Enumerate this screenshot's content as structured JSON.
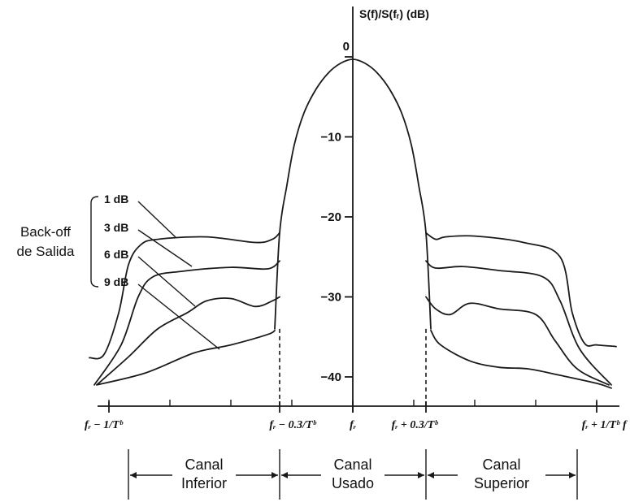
{
  "chart_data": {
    "type": "line",
    "title": "",
    "ylabel": "S(f)/S(fᵣ) (dB)",
    "xlabel": "f",
    "ylim": [
      -42,
      0
    ],
    "yticks": [
      {
        "value": 0,
        "label": "0"
      },
      {
        "value": -10,
        "label": "−10"
      },
      {
        "value": -20,
        "label": "−20"
      },
      {
        "value": -30,
        "label": "−30"
      },
      {
        "value": -40,
        "label": "−40"
      }
    ],
    "x_unit": "1/Tᵇ offset from fᵣ",
    "xticks": [
      {
        "value": -1.0,
        "label": "fᵣ − 1/Tᵇ"
      },
      {
        "value": -0.3,
        "label": "fᵣ − 0.3/Tᵇ"
      },
      {
        "value": 0,
        "label": "fᵣ"
      },
      {
        "value": 0.3,
        "label": "fᵣ + 0.3/Tᵇ"
      },
      {
        "value": 1.0,
        "label": "fᵣ + 1/Tᵇ"
      }
    ],
    "main_lobe": {
      "x": [
        -0.32,
        -0.3,
        -0.27,
        -0.24,
        -0.2,
        -0.15,
        -0.1,
        -0.05,
        0,
        0.05,
        0.1,
        0.15,
        0.2,
        0.24,
        0.27,
        0.3,
        0.32
      ],
      "y": [
        -34,
        -22,
        -16,
        -11,
        -7,
        -4,
        -2,
        -0.8,
        -0.3,
        -0.8,
        -2,
        -4,
        -7,
        -11,
        -16,
        -22,
        -34
      ]
    },
    "series": [
      {
        "name": "1 dB",
        "x": [
          -1.08,
          -1.02,
          -0.96,
          -0.92,
          -0.87,
          -0.8,
          -0.6,
          -0.4,
          -0.33,
          -0.3,
          0.3,
          0.34,
          0.38,
          0.5,
          0.7,
          0.85,
          0.9,
          0.95,
          1.0,
          1.08
        ],
        "y": [
          -37.6,
          -37.2,
          -32,
          -26,
          -23.5,
          -22.8,
          -22.5,
          -23.2,
          -22.8,
          -22,
          -22,
          -22.8,
          -22.5,
          -22.4,
          -23.2,
          -25,
          -32,
          -35.8,
          -36,
          -36.2
        ]
      },
      {
        "name": "3 dB",
        "x": [
          -1.06,
          -0.95,
          -0.88,
          -0.82,
          -0.7,
          -0.5,
          -0.35,
          -0.3,
          0.3,
          0.34,
          0.45,
          0.6,
          0.78,
          0.85,
          0.93,
          1.06
        ],
        "y": [
          -41,
          -36,
          -30,
          -27.5,
          -26.8,
          -26.3,
          -26.5,
          -25.5,
          -25.5,
          -26.4,
          -26.2,
          -26.7,
          -27.5,
          -30.5,
          -36.5,
          -41
        ]
      },
      {
        "name": "6 dB",
        "x": [
          -1.05,
          -0.92,
          -0.8,
          -0.68,
          -0.6,
          -0.5,
          -0.4,
          -0.33,
          -0.3,
          0.3,
          0.34,
          0.4,
          0.48,
          0.6,
          0.75,
          0.83,
          0.92,
          1.05
        ],
        "y": [
          -41,
          -37.5,
          -34,
          -32,
          -30.5,
          -30.2,
          -31.2,
          -30.5,
          -30,
          -30,
          -31.5,
          -32.2,
          -30.8,
          -31.5,
          -32.2,
          -35.5,
          -39,
          -41
        ]
      },
      {
        "name": "9 dB",
        "x": [
          -1.05,
          -0.85,
          -0.65,
          -0.5,
          -0.35,
          -0.32,
          0.32,
          0.36,
          0.48,
          0.6,
          0.72,
          0.85,
          1.0,
          1.06
        ],
        "y": [
          -41,
          -39.5,
          -37,
          -36,
          -34.7,
          -34.2,
          -34.2,
          -36,
          -38,
          -38.8,
          -39,
          -39.8,
          -40.8,
          -41.4
        ]
      }
    ],
    "annotations": {
      "bracket_label_line1": "Back-off",
      "bracket_label_line2": "de Salida",
      "labels": [
        "1 dB",
        "3 dB",
        "6 dB",
        "9 dB"
      ]
    },
    "channels": [
      {
        "line1": "Canal",
        "line2": "Inferior"
      },
      {
        "line1": "Canal",
        "line2": "Usado"
      },
      {
        "line1": "Canal",
        "line2": "Superior"
      }
    ]
  }
}
